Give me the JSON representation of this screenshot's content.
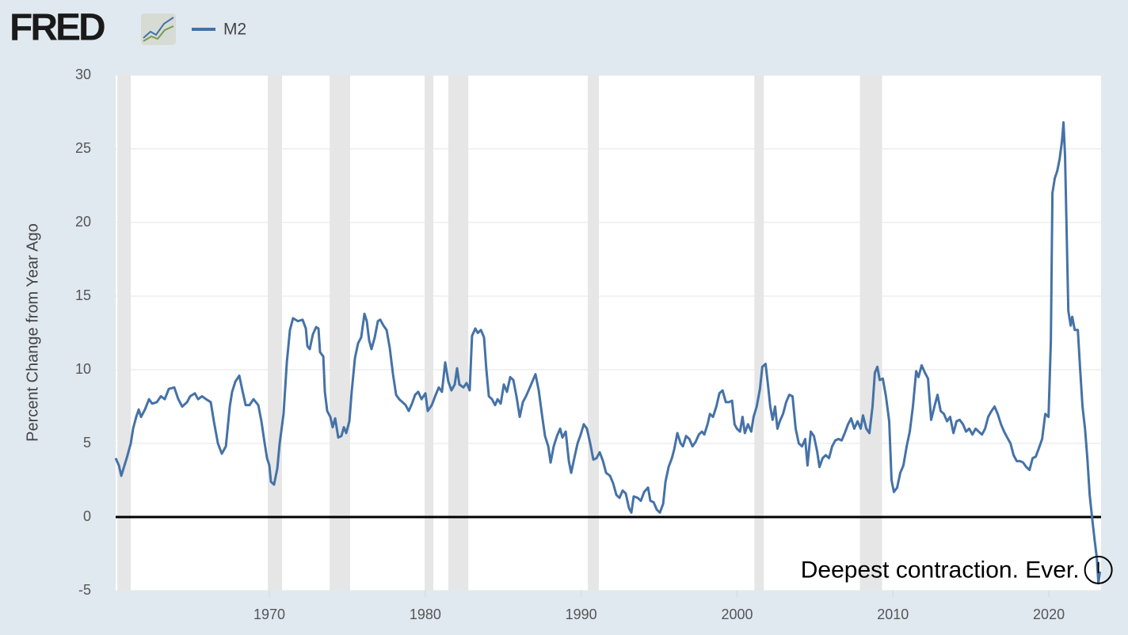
{
  "chart_data": {
    "type": "line",
    "logo": "FRED",
    "y_label": "Percent Change from Year Ago",
    "annotation": "Deepest contraction. Ever.",
    "xlim": [
      1960.14,
      2023.35
    ],
    "xticks": [
      1970,
      1980,
      1990,
      2000,
      2010,
      2020
    ],
    "ylim": [
      -5,
      30
    ],
    "yticks": [
      -5,
      0,
      5,
      10,
      15,
      20,
      25,
      30
    ],
    "grid": true,
    "reference_line": 0,
    "recessions": [
      [
        1960.25,
        1961.11
      ],
      [
        1969.9,
        1970.81
      ],
      [
        1973.87,
        1975.18
      ],
      [
        1979.96,
        1980.52
      ],
      [
        1981.48,
        1982.76
      ],
      [
        1990.43,
        1991.14
      ],
      [
        2001.11,
        2001.72
      ],
      [
        2007.88,
        2009.3
      ]
    ],
    "x": [
      1960.14,
      1960.35,
      1960.5,
      1960.85,
      1961.11,
      1961.26,
      1961.46,
      1961.62,
      1961.77,
      1962.02,
      1962.28,
      1962.48,
      1962.78,
      1963.04,
      1963.29,
      1963.55,
      1963.9,
      1964.16,
      1964.41,
      1964.72,
      1964.92,
      1965.22,
      1965.43,
      1965.68,
      1965.94,
      1966.24,
      1966.44,
      1966.7,
      1966.95,
      1967.21,
      1967.46,
      1967.61,
      1967.82,
      1968.07,
      1968.27,
      1968.48,
      1968.73,
      1968.98,
      1969.29,
      1969.49,
      1969.7,
      1969.85,
      1970.0,
      1970.1,
      1970.3,
      1970.51,
      1970.66,
      1970.91,
      1971.12,
      1971.32,
      1971.52,
      1971.83,
      1972.13,
      1972.34,
      1972.44,
      1972.59,
      1972.79,
      1973.0,
      1973.15,
      1973.25,
      1973.46,
      1973.56,
      1973.71,
      1973.91,
      1974.06,
      1974.22,
      1974.42,
      1974.62,
      1974.78,
      1974.93,
      1975.13,
      1975.28,
      1975.49,
      1975.69,
      1975.89,
      1976.1,
      1976.25,
      1976.4,
      1976.55,
      1976.76,
      1976.96,
      1977.11,
      1977.32,
      1977.52,
      1977.72,
      1977.93,
      1978.13,
      1978.33,
      1978.54,
      1978.74,
      1978.94,
      1979.15,
      1979.35,
      1979.55,
      1979.76,
      1980.01,
      1980.16,
      1980.42,
      1980.67,
      1980.87,
      1981.07,
      1981.28,
      1981.48,
      1981.68,
      1981.89,
      1982.04,
      1982.19,
      1982.45,
      1982.65,
      1982.85,
      1983.0,
      1983.21,
      1983.37,
      1983.57,
      1983.77,
      1983.92,
      1984.08,
      1984.28,
      1984.48,
      1984.64,
      1984.84,
      1985.04,
      1985.24,
      1985.45,
      1985.65,
      1985.85,
      1986.06,
      1986.26,
      1986.46,
      1986.67,
      1986.87,
      1987.07,
      1987.28,
      1987.48,
      1987.68,
      1987.89,
      1988.04,
      1988.24,
      1988.45,
      1988.65,
      1988.8,
      1989.01,
      1989.21,
      1989.36,
      1989.56,
      1989.77,
      1989.97,
      1990.17,
      1990.37,
      1990.58,
      1990.78,
      1990.99,
      1991.19,
      1991.4,
      1991.6,
      1991.85,
      1992.05,
      1992.26,
      1992.46,
      1992.66,
      1992.86,
      1993.07,
      1993.22,
      1993.37,
      1993.63,
      1993.83,
      1994.04,
      1994.29,
      1994.44,
      1994.65,
      1994.85,
      1995.05,
      1995.26,
      1995.41,
      1995.61,
      1995.82,
      1995.97,
      1996.17,
      1996.38,
      1996.53,
      1996.73,
      1996.94,
      1997.14,
      1997.34,
      1997.55,
      1997.75,
      1997.9,
      1998.11,
      1998.26,
      1998.46,
      1998.67,
      1998.87,
      1999.07,
      1999.28,
      1999.48,
      1999.68,
      1999.84,
      1999.99,
      2000.19,
      2000.35,
      2000.5,
      2000.7,
      2000.91,
      2001.06,
      2001.26,
      2001.47,
      2001.62,
      2001.83,
      2001.98,
      2002.13,
      2002.28,
      2002.44,
      2002.59,
      2002.74,
      2002.95,
      2003.15,
      2003.35,
      2003.56,
      2003.76,
      2003.96,
      2004.17,
      2004.37,
      2004.52,
      2004.73,
      2004.93,
      2005.13,
      2005.29,
      2005.49,
      2005.69,
      2005.9,
      2006.1,
      2006.3,
      2006.51,
      2006.71,
      2006.91,
      2007.12,
      2007.32,
      2007.52,
      2007.73,
      2007.93,
      2008.08,
      2008.29,
      2008.49,
      2008.69,
      2008.84,
      2009.0,
      2009.15,
      2009.35,
      2009.55,
      2009.76,
      2009.91,
      2010.06,
      2010.27,
      2010.47,
      2010.67,
      2010.88,
      2011.08,
      2011.28,
      2011.49,
      2011.64,
      2011.84,
      2012.05,
      2012.25,
      2012.45,
      2012.66,
      2012.86,
      2013.06,
      2013.27,
      2013.47,
      2013.67,
      2013.88,
      2014.08,
      2014.28,
      2014.49,
      2014.69,
      2014.89,
      2015.1,
      2015.3,
      2015.5,
      2015.71,
      2015.91,
      2016.11,
      2016.32,
      2016.52,
      2016.72,
      2016.93,
      2017.13,
      2017.33,
      2017.54,
      2017.74,
      2017.94,
      2018.15,
      2018.35,
      2018.55,
      2018.76,
      2018.96,
      2019.16,
      2019.37,
      2019.57,
      2019.77,
      2019.98,
      2020.13,
      2020.23,
      2020.38,
      2020.54,
      2020.69,
      2020.84,
      2020.94,
      2021.04,
      2021.15,
      2021.25,
      2021.4,
      2021.5,
      2021.66,
      2021.86,
      2022.01,
      2022.16,
      2022.32,
      2022.47,
      2022.62,
      2022.77,
      2022.93,
      2023.08,
      2023.18,
      2023.28
    ],
    "series": [
      {
        "name": "M2",
        "color": "#4572a7",
        "values": [
          4.0,
          3.5,
          2.8,
          4.0,
          5.0,
          6.0,
          6.8,
          7.3,
          6.8,
          7.3,
          8.0,
          7.7,
          7.8,
          8.2,
          8.0,
          8.7,
          8.8,
          8.0,
          7.5,
          7.8,
          8.2,
          8.4,
          8.0,
          8.2,
          8.0,
          7.8,
          6.5,
          5.0,
          4.3,
          4.8,
          7.5,
          8.5,
          9.2,
          9.6,
          8.6,
          7.6,
          7.6,
          8.0,
          7.6,
          6.5,
          5.0,
          4.0,
          3.5,
          2.4,
          2.2,
          3.3,
          5.0,
          7.0,
          10.5,
          12.7,
          13.5,
          13.3,
          13.4,
          12.8,
          11.6,
          11.4,
          12.4,
          12.9,
          12.8,
          11.2,
          10.9,
          8.5,
          7.2,
          6.8,
          6.1,
          6.7,
          5.4,
          5.5,
          6.1,
          5.7,
          6.5,
          8.5,
          10.8,
          11.8,
          12.2,
          13.8,
          13.3,
          12.0,
          11.4,
          12.2,
          13.3,
          13.4,
          13.0,
          12.7,
          11.5,
          9.7,
          8.3,
          8.0,
          7.8,
          7.6,
          7.2,
          7.7,
          8.3,
          8.5,
          8.0,
          8.4,
          7.2,
          7.6,
          8.3,
          8.8,
          8.5,
          10.5,
          9.2,
          8.6,
          9.0,
          10.1,
          9.0,
          8.8,
          9.1,
          8.6,
          12.3,
          12.8,
          12.5,
          12.7,
          12.2,
          10.0,
          8.2,
          8.0,
          7.6,
          8.0,
          7.7,
          9.0,
          8.5,
          9.5,
          9.3,
          8.2,
          6.8,
          7.8,
          8.2,
          8.7,
          9.2,
          9.7,
          8.6,
          7.0,
          5.5,
          4.8,
          3.7,
          4.8,
          5.5,
          6.0,
          5.4,
          5.8,
          3.8,
          3.0,
          4.0,
          5.0,
          5.6,
          6.3,
          6.0,
          5.0,
          3.9,
          4.0,
          4.4,
          3.8,
          3.0,
          2.8,
          2.3,
          1.5,
          1.3,
          1.8,
          1.6,
          0.6,
          0.3,
          1.4,
          1.3,
          1.1,
          1.7,
          2.0,
          1.1,
          1.0,
          0.5,
          0.3,
          0.9,
          2.4,
          3.4,
          4.0,
          4.6,
          5.7,
          5.0,
          4.8,
          5.5,
          5.3,
          4.8,
          5.1,
          5.6,
          5.8,
          5.6,
          6.3,
          7.0,
          6.8,
          7.5,
          8.4,
          8.6,
          7.8,
          7.8,
          7.9,
          6.3,
          6.0,
          5.8,
          6.8,
          5.7,
          6.3,
          5.8,
          6.8,
          7.5,
          8.7,
          10.2,
          10.4,
          9.0,
          7.5,
          6.6,
          7.5,
          6.0,
          6.5,
          7.0,
          7.8,
          8.3,
          8.2,
          6.0,
          5.0,
          4.8,
          5.3,
          3.5,
          5.8,
          5.5,
          4.5,
          3.4,
          4.0,
          4.2,
          4.0,
          4.8,
          5.2,
          5.3,
          5.2,
          5.7,
          6.3,
          6.7,
          6.0,
          6.5,
          6.0,
          6.9,
          6.0,
          5.7,
          7.5,
          9.8,
          10.2,
          9.3,
          9.4,
          8.2,
          6.5,
          2.5,
          1.7,
          2.0,
          3.0,
          3.5,
          4.8,
          5.8,
          7.5,
          9.9,
          9.5,
          10.3,
          9.8,
          9.4,
          6.6,
          7.5,
          8.3,
          7.2,
          7.0,
          6.5,
          6.8,
          5.7,
          6.5,
          6.6,
          6.3,
          5.8,
          6.0,
          5.6,
          6.0,
          5.8,
          5.6,
          6.0,
          6.8,
          7.2,
          7.5,
          7.0,
          6.3,
          5.8,
          5.4,
          5.0,
          4.2,
          3.8,
          3.8,
          3.7,
          3.4,
          3.2,
          4.0,
          4.1,
          4.7,
          5.3,
          7.0,
          6.8,
          12.0,
          22.0,
          23.0,
          23.5,
          24.3,
          25.5,
          26.8,
          24.5,
          19.0,
          14.0,
          13.0,
          13.6,
          12.7,
          12.7,
          10.0,
          7.5,
          6.0,
          4.0,
          1.5,
          0.0,
          -1.5,
          -2.8,
          -4.5,
          -3.7
        ]
      }
    ]
  }
}
